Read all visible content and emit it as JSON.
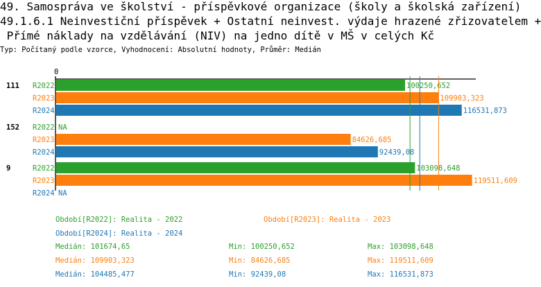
{
  "title_lines": [
    "49. Samospráva ve školství - příspěvkové organizace (školy a školská zařízení)",
    "49.1.6.1 Neinvestiční příspěvek + Ostatní neinvest. výdaje hrazené zřizovatelem +",
    " Přímé náklady na vzdělávání (NIV) na jedno dítě v MŠ v celých Kč"
  ],
  "subtitle": "Typ: Počítaný podle vzorce, Vyhodnocení: Absolutní hodnoty, Průměr: Medián",
  "chart_data": {
    "type": "bar",
    "orientation": "horizontal",
    "axis_zero_label": "0",
    "groups": [
      {
        "label": "111",
        "bars": [
          {
            "series": "R2022",
            "value": 100250.652,
            "text": "100250,652"
          },
          {
            "series": "R2023",
            "value": 109903.323,
            "text": "109903,323"
          },
          {
            "series": "R2024",
            "value": 116531.873,
            "text": "116531,873"
          }
        ]
      },
      {
        "label": "152",
        "bars": [
          {
            "series": "R2022",
            "value": null,
            "text": "NA"
          },
          {
            "series": "R2023",
            "value": 84626.685,
            "text": "84626,685"
          },
          {
            "series": "R2024",
            "value": 92439.08,
            "text": "92439,08"
          }
        ]
      },
      {
        "label": "9",
        "bars": [
          {
            "series": "R2022",
            "value": 103098.648,
            "text": "103098,648"
          },
          {
            "series": "R2023",
            "value": 119511.609,
            "text": "119511,609"
          },
          {
            "series": "R2024",
            "value": null,
            "text": "NA"
          }
        ]
      }
    ],
    "colors": {
      "R2022": "#2ca02c",
      "R2023": "#ff7f0e",
      "R2024": "#1f77b4"
    },
    "median_lines": {
      "R2022": 101674.65,
      "R2023": 109903.323,
      "R2024": 104485.477
    },
    "legend": [
      {
        "series": "R2022",
        "text": "Období[R2022]: Realita - 2022"
      },
      {
        "series": "R2023",
        "text": "Období[R2023]: Realita - 2023"
      },
      {
        "series": "R2024",
        "text": "Období[R2024]: Realita - 2024"
      }
    ],
    "stats": [
      {
        "series": "R2022",
        "median": "Medián: 101674,65",
        "min": "Min: 100250,652",
        "max": "Max: 103098,648"
      },
      {
        "series": "R2023",
        "median": "Medián: 109903,323",
        "min": "Min: 84626,685",
        "max": "Max: 119511,609"
      },
      {
        "series": "R2024",
        "median": "Medián: 104485,477",
        "min": "Min: 92439,08",
        "max": "Max: 116531,873"
      }
    ]
  }
}
